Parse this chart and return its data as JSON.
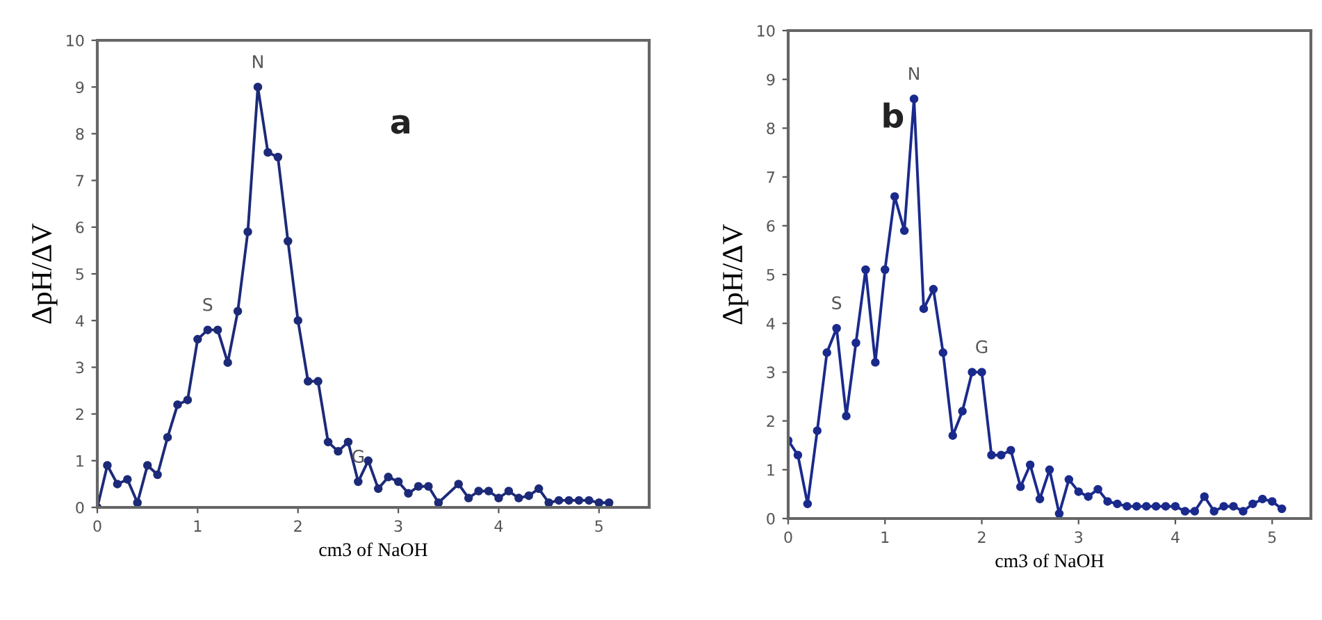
{
  "chart_data": [
    {
      "type": "line",
      "xlabel": "cm3 of NaOH",
      "ylabel": "ΔpH/ΔV",
      "xlim": [
        0,
        5.5
      ],
      "ylim": [
        0,
        10
      ],
      "xticks": [
        0,
        1,
        2,
        3,
        4,
        5
      ],
      "yticks": [
        0,
        1,
        2,
        3,
        4,
        5,
        6,
        7,
        8,
        9,
        10
      ],
      "marker": "circle",
      "grid": false,
      "annotations": [
        "a",
        {
          "text": "S",
          "x": 1.1,
          "y": 3.8
        },
        {
          "text": "N",
          "x": 1.6,
          "y": 9.0
        },
        {
          "text": "G",
          "x": 2.6,
          "y": 0.55
        }
      ],
      "series": [
        {
          "color": "#1c2a78",
          "x": [
            0,
            0.1,
            0.2,
            0.3,
            0.4,
            0.5,
            0.6,
            0.7,
            0.8,
            0.9,
            1.0,
            1.1,
            1.2,
            1.3,
            1.4,
            1.5,
            1.6,
            1.7,
            1.8,
            1.9,
            2.0,
            2.1,
            2.2,
            2.3,
            2.4,
            2.5,
            2.6,
            2.7,
            2.8,
            2.9,
            3.0,
            3.1,
            3.2,
            3.3,
            3.4,
            3.6,
            3.7,
            3.8,
            3.9,
            4.0,
            4.1,
            4.2,
            4.3,
            4.4,
            4.5,
            4.6,
            4.7,
            4.8,
            4.9,
            5.0,
            5.1
          ],
          "values": [
            0,
            0.9,
            0.5,
            0.6,
            0.1,
            0.9,
            0.7,
            1.5,
            2.2,
            2.3,
            3.6,
            3.8,
            3.8,
            3.1,
            4.2,
            5.9,
            9.0,
            7.6,
            7.5,
            5.7,
            4.0,
            2.7,
            2.7,
            1.4,
            1.2,
            1.4,
            0.55,
            1.0,
            0.4,
            0.65,
            0.55,
            0.3,
            0.45,
            0.45,
            0.1,
            0.5,
            0.2,
            0.35,
            0.35,
            0.2,
            0.35,
            0.2,
            0.25,
            0.4,
            0.1,
            0.15,
            0.15,
            0.15,
            0.15,
            0.1,
            0.1
          ]
        }
      ]
    },
    {
      "type": "line",
      "xlabel": "cm3 of NaOH",
      "ylabel": "ΔpH/ΔV",
      "xlim": [
        0,
        5.4
      ],
      "ylim": [
        0,
        10
      ],
      "xticks": [
        0,
        1,
        2,
        3,
        4,
        5
      ],
      "yticks": [
        0,
        1,
        2,
        3,
        4,
        5,
        6,
        7,
        8,
        9,
        10
      ],
      "marker": "circle",
      "grid": false,
      "annotations": [
        "b",
        {
          "text": "S",
          "x": 0.5,
          "y": 3.9
        },
        {
          "text": "N",
          "x": 1.3,
          "y": 8.6
        },
        {
          "text": "G",
          "x": 2.0,
          "y": 3.0
        }
      ],
      "series": [
        {
          "color": "#1a2a8c",
          "x": [
            0,
            0.1,
            0.2,
            0.3,
            0.4,
            0.5,
            0.6,
            0.7,
            0.8,
            0.9,
            1.0,
            1.1,
            1.2,
            1.3,
            1.4,
            1.5,
            1.6,
            1.7,
            1.8,
            1.9,
            2.0,
            2.1,
            2.2,
            2.3,
            2.4,
            2.5,
            2.6,
            2.7,
            2.8,
            2.9,
            3.0,
            3.1,
            3.2,
            3.3,
            3.4,
            3.5,
            3.6,
            3.7,
            3.8,
            3.9,
            4.0,
            4.1,
            4.2,
            4.3,
            4.4,
            4.5,
            4.6,
            4.7,
            4.8,
            4.9,
            5.0,
            5.1
          ],
          "values": [
            1.6,
            1.3,
            0.3,
            1.8,
            3.4,
            3.9,
            2.1,
            3.6,
            5.1,
            3.2,
            5.1,
            6.6,
            5.9,
            8.6,
            4.3,
            4.7,
            3.4,
            1.7,
            2.2,
            3.0,
            3.0,
            1.3,
            1.3,
            1.4,
            0.65,
            1.1,
            0.4,
            1.0,
            0.1,
            0.8,
            0.55,
            0.45,
            0.6,
            0.35,
            0.3,
            0.25,
            0.25,
            0.25,
            0.25,
            0.25,
            0.25,
            0.15,
            0.15,
            0.45,
            0.15,
            0.25,
            0.25,
            0.15,
            0.3,
            0.4,
            0.35,
            0.2
          ]
        }
      ]
    }
  ]
}
